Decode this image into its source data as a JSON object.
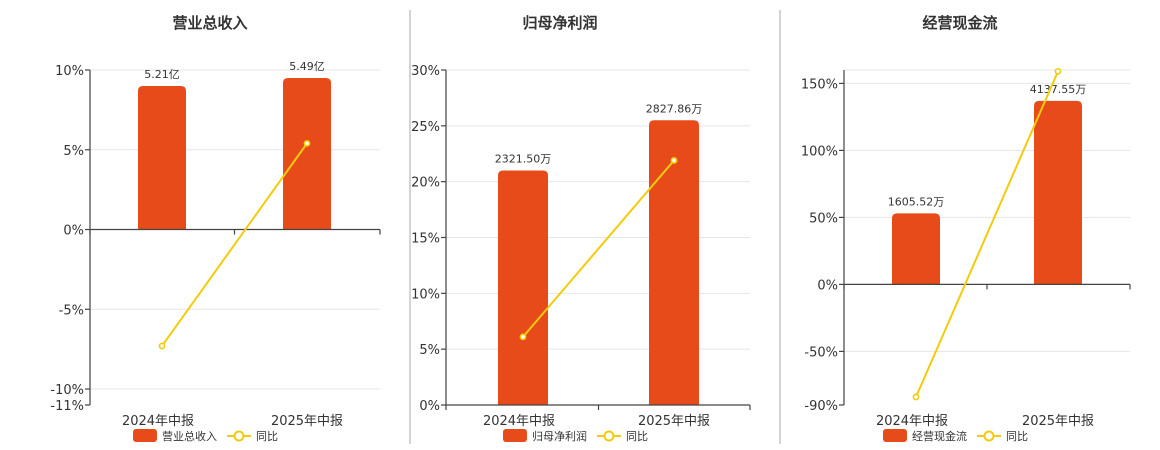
{
  "colors": {
    "bar": "#E84B1A",
    "line": "#F2CC0C"
  },
  "chart_data": [
    {
      "type": "bar",
      "title": "营业总收入",
      "categories": [
        "2024年中报",
        "2025年中报"
      ],
      "series": [
        {
          "name": "营业总收入",
          "kind": "bar",
          "values": [
            9,
            9.5
          ],
          "labels": [
            "5.21亿",
            "5.49亿"
          ]
        },
        {
          "name": "同比",
          "kind": "line",
          "values": [
            -7.3,
            5.4
          ]
        }
      ],
      "yticks": [
        "10%",
        "5%",
        "0%",
        "-5%",
        "-10%",
        "-11%"
      ],
      "ylim": [
        -11,
        10
      ]
    },
    {
      "type": "bar",
      "title": "归母净利润",
      "categories": [
        "2024年中报",
        "2025年中报"
      ],
      "series": [
        {
          "name": "归母净利润",
          "kind": "bar",
          "values": [
            21,
            25.5
          ],
          "labels": [
            "2321.50万",
            "2827.86万"
          ]
        },
        {
          "name": "同比",
          "kind": "line",
          "values": [
            6.1,
            21.9
          ]
        }
      ],
      "yticks": [
        "30%",
        "25%",
        "20%",
        "15%",
        "10%",
        "5%",
        "0%"
      ],
      "ylim": [
        0,
        30
      ]
    },
    {
      "type": "bar",
      "title": "经营现金流",
      "categories": [
        "2024年中报",
        "2025年中报"
      ],
      "series": [
        {
          "name": "经营现金流",
          "kind": "bar",
          "values": [
            53,
            137
          ],
          "labels": [
            "1605.52万",
            "4137.55万"
          ]
        },
        {
          "name": "同比",
          "kind": "line",
          "values": [
            -84,
            159
          ]
        }
      ],
      "yticks": [
        "150%",
        "100%",
        "50%",
        "0%",
        "-50%",
        "-90%"
      ],
      "ylim": [
        -90,
        160
      ]
    }
  ]
}
